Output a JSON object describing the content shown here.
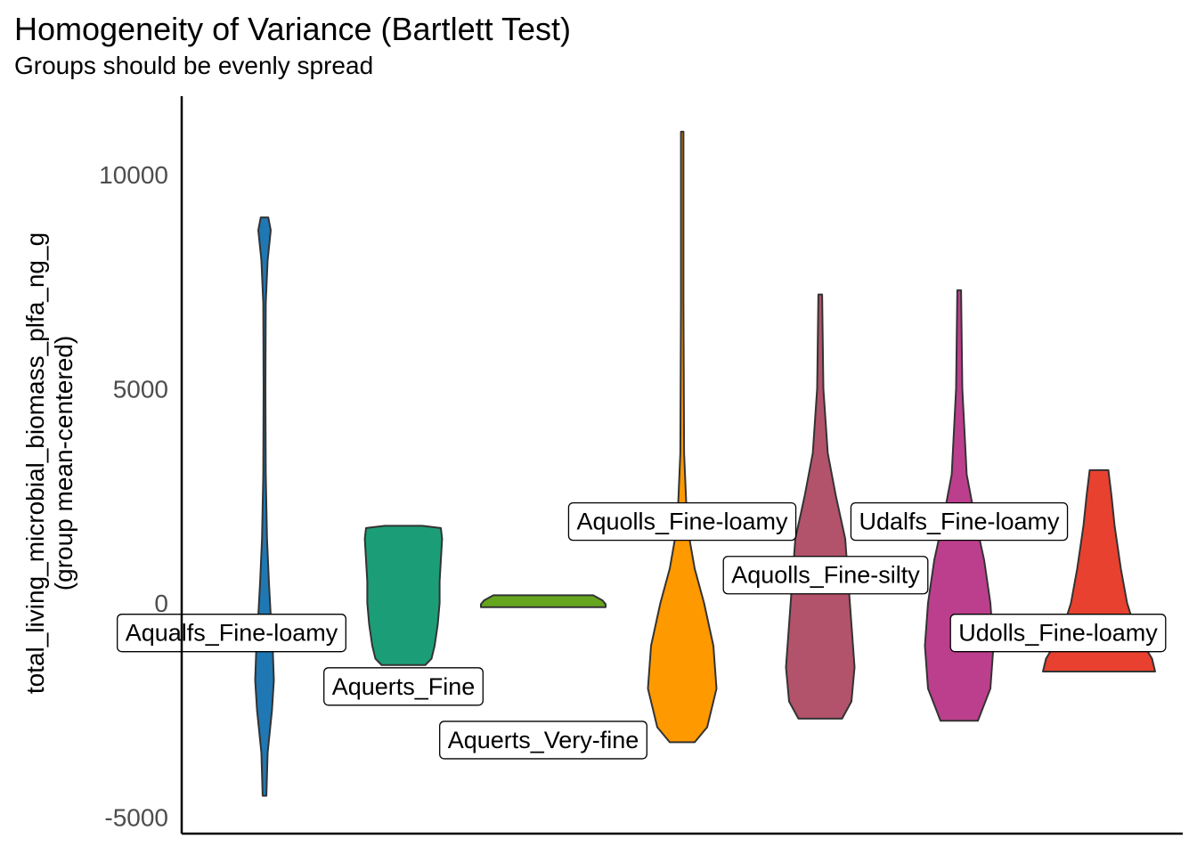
{
  "chart_data": {
    "type": "violin",
    "title": "Homogeneity of Variance (Bartlett Test)",
    "subtitle": "Groups should be evenly spread",
    "xlabel": "",
    "ylabel_lines": [
      "total_living_microbial_biomass_plfa_ng_g",
      "(group mean-centered)"
    ],
    "ylim": [
      -5400,
      12000
    ],
    "y_ticks": [
      -5000,
      0,
      5000,
      10000
    ],
    "y_tick_labels": [
      "-5000",
      "0",
      "5000",
      "10000"
    ],
    "grid": false,
    "legend": "none",
    "groups": [
      {
        "name": "Aqualfs_Fine-loamy",
        "color": "#1F78B4",
        "min": -4500,
        "max": 9000,
        "profile": [
          [
            -4500,
            0.03
          ],
          [
            -3500,
            0.05
          ],
          [
            -2500,
            0.12
          ],
          [
            -1800,
            0.15
          ],
          [
            -1000,
            0.13
          ],
          [
            -300,
            0.1
          ],
          [
            500,
            0.07
          ],
          [
            1500,
            0.04
          ],
          [
            3000,
            0.02
          ],
          [
            5000,
            0.015
          ],
          [
            7000,
            0.02
          ],
          [
            8000,
            0.05
          ],
          [
            8700,
            0.1
          ],
          [
            9000,
            0.06
          ]
        ],
        "label_y": -700
      },
      {
        "name": "Aquerts_Fine",
        "color": "#1B9E77",
        "min": -1450,
        "max": 1800,
        "profile": [
          [
            -1450,
            0.35
          ],
          [
            -1300,
            0.45
          ],
          [
            -1000,
            0.5
          ],
          [
            -500,
            0.55
          ],
          [
            0,
            0.58
          ],
          [
            500,
            0.58
          ],
          [
            1000,
            0.6
          ],
          [
            1500,
            0.62
          ],
          [
            1750,
            0.6
          ],
          [
            1800,
            0.3
          ]
        ],
        "label_y": -1950
      },
      {
        "name": "Aquerts_Very-fine",
        "color": "#66A61E",
        "min": -100,
        "max": 180,
        "profile": [
          [
            -100,
            1.0
          ],
          [
            -30,
            1.0
          ],
          [
            60,
            0.95
          ],
          [
            140,
            0.85
          ],
          [
            180,
            0.8
          ]
        ],
        "label_y": -3200
      },
      {
        "name": "Aquolls_Fine-loamy",
        "color": "#FF9900",
        "min": -3250,
        "max": 11000,
        "profile": [
          [
            -3250,
            0.2
          ],
          [
            -2900,
            0.4
          ],
          [
            -2000,
            0.55
          ],
          [
            -1000,
            0.5
          ],
          [
            0,
            0.35
          ],
          [
            800,
            0.2
          ],
          [
            1800,
            0.08
          ],
          [
            3500,
            0.03
          ],
          [
            7000,
            0.02
          ],
          [
            11000,
            0.02
          ]
        ],
        "label_y": 1900
      },
      {
        "name": "Aquolls_Fine-silty",
        "color": "#B2536B",
        "min": -2700,
        "max": 7200,
        "profile": [
          [
            -2700,
            0.35
          ],
          [
            -2300,
            0.5
          ],
          [
            -1500,
            0.55
          ],
          [
            -500,
            0.5
          ],
          [
            500,
            0.45
          ],
          [
            1500,
            0.4
          ],
          [
            2500,
            0.25
          ],
          [
            3500,
            0.12
          ],
          [
            5000,
            0.05
          ],
          [
            7200,
            0.03
          ]
        ],
        "label_y": 650
      },
      {
        "name": "Udalfs_Fine-loamy",
        "color": "#BC3F8E",
        "min": -2750,
        "max": 7300,
        "profile": [
          [
            -2750,
            0.3
          ],
          [
            -2000,
            0.5
          ],
          [
            -1000,
            0.55
          ],
          [
            0,
            0.5
          ],
          [
            1000,
            0.4
          ],
          [
            2000,
            0.25
          ],
          [
            3000,
            0.12
          ],
          [
            5000,
            0.05
          ],
          [
            7300,
            0.03
          ]
        ],
        "label_y": 1900
      },
      {
        "name": "Udolls_Fine-loamy",
        "color": "#E8412F",
        "min": -1600,
        "max": 3100,
        "profile": [
          [
            -1600,
            0.9
          ],
          [
            -1300,
            0.85
          ],
          [
            -700,
            0.6
          ],
          [
            0,
            0.45
          ],
          [
            800,
            0.35
          ],
          [
            1800,
            0.25
          ],
          [
            2500,
            0.2
          ],
          [
            3100,
            0.15
          ]
        ],
        "label_y": -700
      }
    ]
  }
}
